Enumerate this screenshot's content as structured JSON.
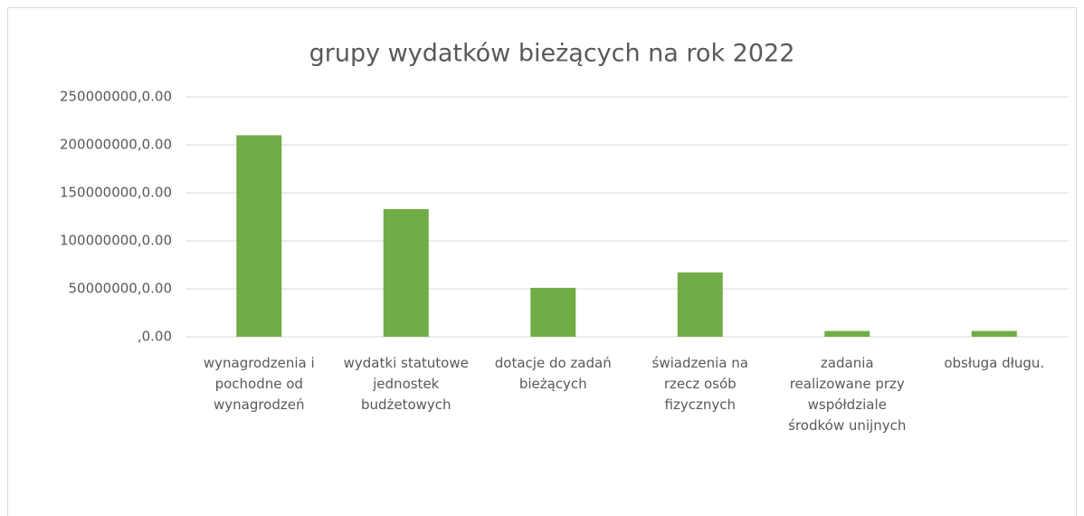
{
  "chart_data": {
    "type": "bar",
    "title": "grupy wydatków bieżących na rok 2022",
    "categories": [
      "wynagrodzenia i pochodne od wynagrodzeń",
      "wydatki statutowe jednostek budżetowych",
      "dotacje do zadań bieżących",
      "świadzenia na rzecz osób fizycznych",
      "zadania realizowane przy współdziale środków unijnych",
      "obsługa długu."
    ],
    "values": [
      210000000,
      133000000,
      51000000,
      67000000,
      6000000,
      6000000
    ],
    "color": "#70ad47",
    "ylim": [
      0,
      250000000
    ],
    "yticks": [
      {
        "value": 0,
        "label": ",0.00"
      },
      {
        "value": 50000000,
        "label": "50000000,0.00"
      },
      {
        "value": 100000000,
        "label": "100000000,0.00"
      },
      {
        "value": 150000000,
        "label": "150000000,0.00"
      },
      {
        "value": 200000000,
        "label": "200000000,0.00"
      },
      {
        "value": 250000000,
        "label": "250000000,0.00"
      }
    ],
    "grid": true
  }
}
